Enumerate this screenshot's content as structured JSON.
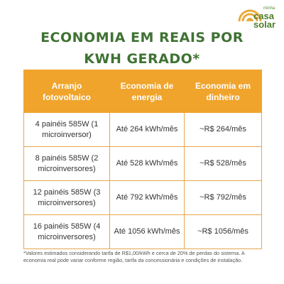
{
  "logo": {
    "small_text": "minha",
    "brand_line1": "casa",
    "brand_line2": "solar",
    "colors": {
      "green": "#4e7d2a",
      "sun": "#e9a93a"
    }
  },
  "title": "ECONOMIA EM REAIS POR KWH GERADO*",
  "table": {
    "headers": [
      "Arranjo fotovoltaico",
      "Economia de energia",
      "Economia em dinheiro"
    ],
    "rows": [
      [
        "4 painéis 585W (1 microinversor)",
        "Até 264 kWh/mês",
        "~R$ 264/mês"
      ],
      [
        "8 painéis 585W (2 microinversores)",
        "Até 528 kWh/mês",
        "~R$ 528/mês"
      ],
      [
        "12 painéis 585W (3 microinversores)",
        "Até 792 kWh/mês",
        "~R$ 792/mês"
      ],
      [
        "16 painéis 585W (4 microinversores)",
        "Até 1056 kWh/mês",
        "~R$ 1056/mês"
      ]
    ],
    "colors": {
      "header_bg": "#f0a42c",
      "border": "#e7a64c"
    }
  },
  "footnote": "*Valores estimados considerando tarifa de R$1,00/kWh e cerca de 20% de perdas do sistema. A economia real pode variar conforme região, tarifa da concessionária e condições de instalação."
}
